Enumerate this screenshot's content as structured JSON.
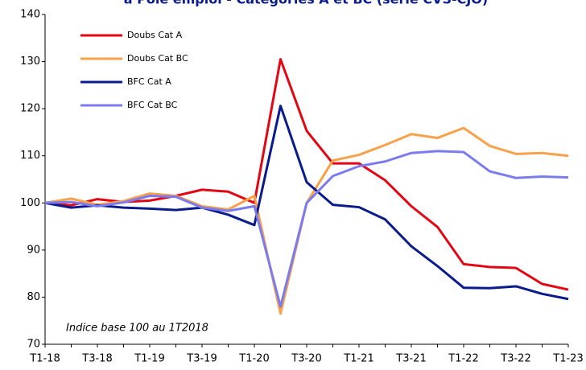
{
  "chart_data": {
    "type": "line",
    "title": "à Pôle emploi - Catégories A et BC (série CVS-CJO)",
    "annotation": "Indice base 100 au 1T2018",
    "categories": [
      "T1-18",
      null,
      "T3-18",
      null,
      "T1-19",
      null,
      "T3-19",
      null,
      "T1-20",
      null,
      "T3-20",
      null,
      "T1-21",
      null,
      "T3-21",
      null,
      "T1-22",
      null,
      "T3-22",
      null,
      "T1-23"
    ],
    "series": [
      {
        "name": "Doubs  Cat A",
        "color": "#e30613",
        "values": [
          100,
          99.5,
          100.8,
          100.2,
          100.5,
          101.5,
          102.8,
          102.4,
          100,
          130.5,
          115.3,
          108.4,
          108.4,
          104.8,
          99.3,
          94.9,
          87,
          86.4,
          86.2,
          82.8,
          81.6
        ]
      },
      {
        "name": "Doubs  Cat BC",
        "color": "#f7a14a",
        "values": [
          100,
          100.9,
          99.6,
          100.4,
          102,
          101.5,
          99.3,
          98.6,
          101.5,
          76.5,
          100,
          109,
          110.2,
          112.3,
          114.6,
          113.8,
          115.9,
          112.1,
          110.4,
          110.6,
          110
        ]
      },
      {
        "name": "BFC Cat A",
        "color": "#0a1b8c",
        "values": [
          100,
          99,
          99.5,
          99,
          98.8,
          98.5,
          99,
          97.5,
          95.3,
          120.6,
          104.4,
          99.6,
          99.1,
          96.5,
          90.8,
          86.6,
          82,
          81.9,
          82.3,
          80.7,
          79.6
        ]
      },
      {
        "name": "BFC Cat BC",
        "color": "#7b7bf0",
        "values": [
          100,
          100.2,
          99.3,
          100.1,
          101.5,
          101.3,
          99,
          98.3,
          99.3,
          78,
          100,
          105.7,
          107.8,
          108.8,
          110.6,
          111,
          110.8,
          106.7,
          105.3,
          105.6,
          105.4
        ]
      }
    ],
    "ylim": [
      70,
      140
    ],
    "yticks": [
      70,
      80,
      90,
      100,
      110,
      120,
      130,
      140
    ],
    "grid": false
  }
}
